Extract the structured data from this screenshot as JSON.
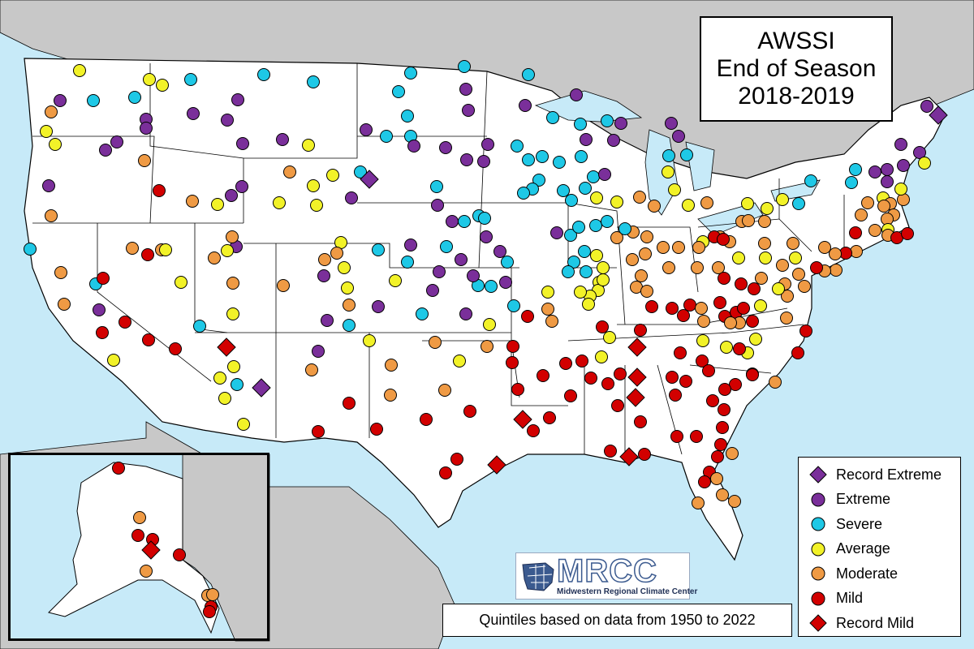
{
  "title": {
    "line1": "AWSSI",
    "line2": "End of Season",
    "line3": "2018-2019"
  },
  "colors": {
    "land": "#ffffff",
    "neighbor_land": "#c8c8c8",
    "water": "#c7eaf8",
    "state_border": "#000000",
    "record_extreme": "#7a2f9a",
    "extreme": "#7a2f9a",
    "severe": "#1ec8e6",
    "average": "#f2f228",
    "moderate": "#ef9a44",
    "mild": "#d20000",
    "record_mild": "#d20000"
  },
  "legend": [
    {
      "label": "Record Extreme",
      "category": "record_extreme",
      "shape": "diamond",
      "icon": "purple-diamond-icon"
    },
    {
      "label": "Extreme",
      "category": "extreme",
      "shape": "circle",
      "icon": "purple-circle-icon"
    },
    {
      "label": "Severe",
      "category": "severe",
      "shape": "circle",
      "icon": "cyan-circle-icon"
    },
    {
      "label": "Average",
      "category": "average",
      "shape": "circle",
      "icon": "yellow-circle-icon"
    },
    {
      "label": "Moderate",
      "category": "moderate",
      "shape": "circle",
      "icon": "orange-circle-icon"
    },
    {
      "label": "Mild",
      "category": "mild",
      "shape": "circle",
      "icon": "red-circle-icon"
    },
    {
      "label": "Record Mild",
      "category": "record_mild",
      "shape": "diamond",
      "icon": "red-diamond-icon"
    }
  ],
  "note": "Quintiles based on data from 1950 to 2022",
  "logo": {
    "name": "MRCC",
    "subtitle": "Midwestern Regional Climate Center"
  }
}
